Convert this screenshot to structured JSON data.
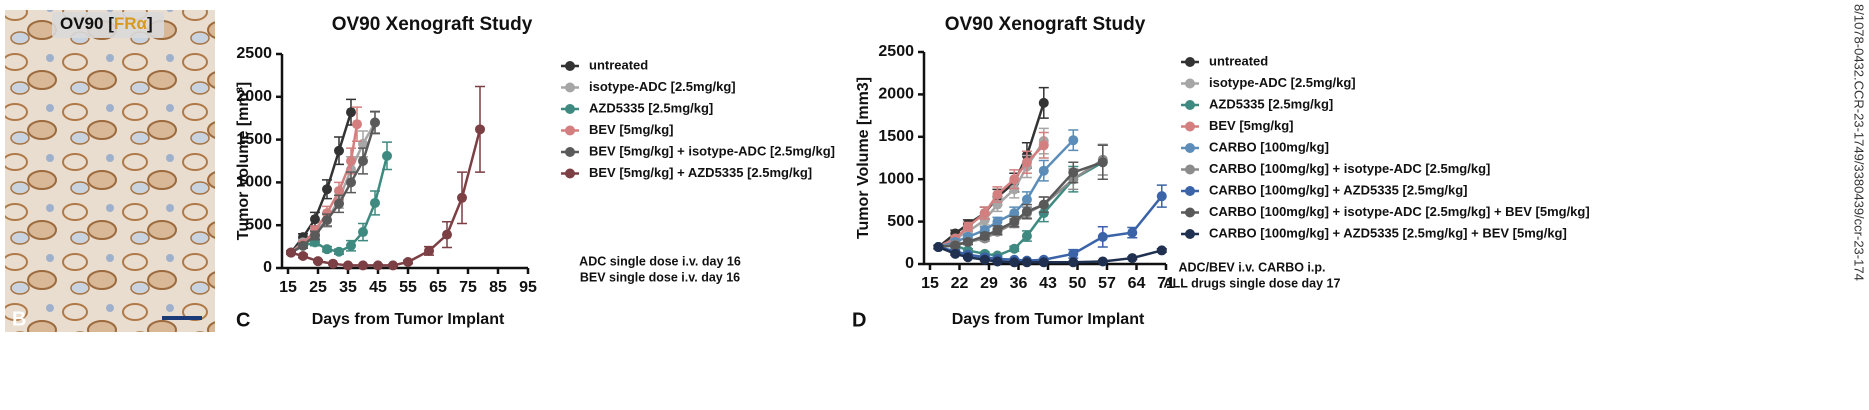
{
  "panel_b": {
    "title_prefix": "OV90 [",
    "marker": "FRα",
    "title_suffix": "]",
    "label": "B"
  },
  "side_note": "8/1078-0432.CCR-23-1749/3380439/ccr-23-174",
  "chart_data": [
    {
      "type": "line",
      "panel": "C",
      "title": "OV90 Xenograft Study",
      "ylabel": "Tumor Volume [mm³]",
      "xlabel": "Days from Tumor Implant",
      "annotations": [
        "ADC single dose i.v. day 16",
        "BEV single dose i.v. day 16"
      ],
      "xlim": [
        15,
        95
      ],
      "xticks": [
        15,
        25,
        35,
        45,
        55,
        65,
        75,
        85,
        95
      ],
      "ylim": [
        0,
        2500
      ],
      "yticks": [
        0,
        500,
        1000,
        1500,
        2000,
        2500
      ],
      "series": [
        {
          "name": "untreated",
          "color": "#333333",
          "x": [
            16,
            20,
            24,
            28,
            32,
            36
          ],
          "values": [
            180,
            360,
            570,
            920,
            1370,
            1820
          ],
          "errors": [
            20,
            40,
            80,
            110,
            160,
            150
          ]
        },
        {
          "name": "isotype-ADC [2.5mg/kg]",
          "color": "#a6a6a6",
          "x": [
            16,
            20,
            24,
            28,
            32,
            36,
            40,
            44
          ],
          "values": [
            180,
            300,
            420,
            560,
            800,
            1150,
            1450,
            1700
          ],
          "errors": [
            20,
            30,
            50,
            80,
            100,
            150,
            150,
            120
          ]
        },
        {
          "name": "AZD5335 [2.5mg/kg]",
          "color": "#3f8a80",
          "x": [
            16,
            20,
            24,
            28,
            32,
            36,
            40,
            44,
            48
          ],
          "values": [
            180,
            260,
            300,
            220,
            190,
            260,
            420,
            760,
            1310
          ],
          "errors": [
            20,
            30,
            40,
            30,
            30,
            60,
            100,
            140,
            160
          ]
        },
        {
          "name": "BEV [5mg/kg]",
          "color": "#d47f7f",
          "x": [
            16,
            20,
            24,
            28,
            32,
            36,
            38
          ],
          "values": [
            180,
            280,
            440,
            640,
            900,
            1250,
            1680
          ],
          "errors": [
            20,
            30,
            50,
            80,
            100,
            150,
            200
          ]
        },
        {
          "name": "BEV [5mg/kg] + isotype-ADC [2.5mg/kg]",
          "color": "#5a5a5a",
          "x": [
            16,
            20,
            24,
            28,
            32,
            36,
            40,
            44
          ],
          "values": [
            180,
            260,
            380,
            560,
            750,
            1000,
            1250,
            1700
          ],
          "errors": [
            20,
            30,
            50,
            70,
            100,
            120,
            150,
            130
          ]
        },
        {
          "name": "BEV [5mg/kg] + AZD5335 [2.5mg/kg]",
          "color": "#7b3f44",
          "x": [
            16,
            20,
            25,
            30,
            35,
            40,
            45,
            50,
            55,
            62,
            68,
            73,
            79
          ],
          "values": [
            180,
            140,
            80,
            50,
            30,
            30,
            30,
            30,
            70,
            200,
            390,
            820,
            1620
          ],
          "errors": [
            20,
            20,
            15,
            10,
            10,
            10,
            10,
            10,
            20,
            50,
            150,
            300,
            500
          ]
        }
      ]
    },
    {
      "type": "line",
      "panel": "D",
      "title": "OV90 Xenograft Study",
      "ylabel": "Tumor Volume [mm3]",
      "xlabel": "Days from Tumor Implant",
      "annotations": [
        "ADC/BEV i.v. CARBO i.p.",
        "ALL drugs single dose day 17"
      ],
      "xlim": [
        15,
        71
      ],
      "xticks": [
        15,
        22,
        29,
        36,
        43,
        50,
        57,
        64,
        71
      ],
      "ylim": [
        0,
        2500
      ],
      "yticks": [
        0,
        500,
        1000,
        1500,
        2000,
        2500
      ],
      "series": [
        {
          "name": "untreated",
          "color": "#333333",
          "x": [
            17,
            21,
            24,
            28,
            31,
            35,
            38,
            42
          ],
          "values": [
            200,
            360,
            470,
            600,
            790,
            960,
            1280,
            1900
          ],
          "errors": [
            20,
            40,
            50,
            70,
            90,
            110,
            150,
            180
          ]
        },
        {
          "name": "isotype-ADC [2.5mg/kg]",
          "color": "#a6a6a6",
          "x": [
            17,
            21,
            24,
            28,
            31,
            35,
            38,
            42
          ],
          "values": [
            200,
            300,
            380,
            520,
            700,
            880,
            1150,
            1450
          ],
          "errors": [
            20,
            30,
            40,
            60,
            80,
            100,
            130,
            150
          ]
        },
        {
          "name": "AZD5335 [2.5mg/kg]",
          "color": "#3f8a80",
          "x": [
            17,
            21,
            24,
            28,
            31,
            35,
            38,
            42,
            49,
            56
          ],
          "values": [
            200,
            220,
            160,
            120,
            100,
            180,
            330,
            600,
            1000,
            1200
          ],
          "errors": [
            20,
            30,
            20,
            20,
            20,
            30,
            60,
            100,
            150,
            200
          ]
        },
        {
          "name": "BEV [5mg/kg]",
          "color": "#d47f7f",
          "x": [
            17,
            21,
            24,
            28,
            31,
            35,
            38,
            42
          ],
          "values": [
            200,
            300,
            440,
            600,
            820,
            1000,
            1200,
            1400
          ],
          "errors": [
            20,
            30,
            50,
            70,
            90,
            110,
            130,
            150
          ]
        },
        {
          "name": "CARBO [100mg/kg]",
          "color": "#5b8db8",
          "x": [
            17,
            21,
            24,
            28,
            31,
            35,
            38,
            42,
            49
          ],
          "values": [
            200,
            260,
            320,
            400,
            500,
            600,
            760,
            1100,
            1460
          ],
          "errors": [
            20,
            30,
            30,
            40,
            50,
            70,
            90,
            120,
            120
          ]
        },
        {
          "name": "CARBO [100mg/kg] + isotype-ADC [2.5mg/kg]",
          "color": "#8c8c8c",
          "x": [
            17,
            21,
            24,
            28,
            31,
            35,
            38,
            42,
            49,
            56
          ],
          "values": [
            200,
            230,
            260,
            300,
            380,
            480,
            600,
            700,
            1000,
            1230
          ],
          "errors": [
            20,
            20,
            30,
            30,
            40,
            50,
            70,
            90,
            120,
            180
          ]
        },
        {
          "name": "CARBO [100mg/kg] + AZD5335 [2.5mg/kg]",
          "color": "#3a63a8",
          "x": [
            17,
            21,
            24,
            28,
            31,
            35,
            38,
            42,
            49,
            56,
            63,
            70
          ],
          "values": [
            200,
            150,
            110,
            80,
            60,
            50,
            40,
            50,
            120,
            320,
            370,
            800
          ],
          "errors": [
            20,
            20,
            15,
            10,
            10,
            10,
            10,
            15,
            50,
            120,
            60,
            130
          ]
        },
        {
          "name": "CARBO [100mg/kg] + isotype-ADC [2.5mg/kg] + BEV [5mg/kg]",
          "color": "#595959",
          "x": [
            17,
            21,
            24,
            28,
            31,
            35,
            38,
            42,
            49,
            56
          ],
          "values": [
            200,
            220,
            260,
            330,
            400,
            500,
            620,
            700,
            1080,
            1200
          ],
          "errors": [
            20,
            20,
            30,
            40,
            50,
            60,
            80,
            90,
            120,
            200
          ]
        },
        {
          "name": "CARBO [100mg/kg] + AZD5335 [2.5mg/kg] + BEV [5mg/kg]",
          "color": "#1f3050",
          "x": [
            17,
            21,
            24,
            28,
            31,
            35,
            38,
            42,
            49,
            56,
            63,
            70
          ],
          "values": [
            200,
            120,
            80,
            50,
            30,
            20,
            20,
            20,
            20,
            30,
            70,
            160
          ],
          "errors": [
            20,
            15,
            10,
            10,
            5,
            5,
            5,
            5,
            5,
            10,
            15,
            20
          ]
        }
      ]
    }
  ]
}
